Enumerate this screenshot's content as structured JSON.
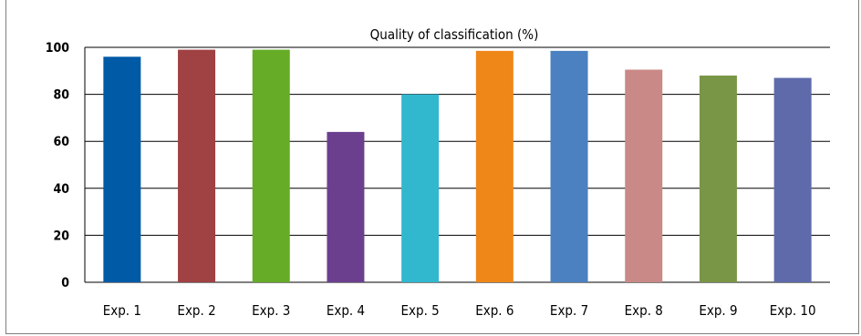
{
  "chart_data": {
    "type": "bar",
    "title": "Quality of classification (%)",
    "xlabel": "",
    "ylabel": "",
    "categories": [
      "Exp. 1",
      "Exp. 2",
      "Exp. 3",
      "Exp. 4",
      "Exp. 5",
      "Exp. 6",
      "Exp. 7",
      "Exp. 8",
      "Exp. 9",
      "Exp. 10"
    ],
    "values": [
      96,
      99,
      99,
      64,
      80,
      98.5,
      98.5,
      90.5,
      88,
      87
    ],
    "colors": [
      "#005aa6",
      "#a04143",
      "#66ac26",
      "#6c3f8e",
      "#31b8cf",
      "#ef8618",
      "#4b81c0",
      "#c98986",
      "#799647",
      "#5f6aab"
    ],
    "ylim": [
      0,
      100
    ],
    "yticks": [
      0,
      20,
      40,
      60,
      80,
      100
    ],
    "grid": true,
    "legend": "none"
  }
}
